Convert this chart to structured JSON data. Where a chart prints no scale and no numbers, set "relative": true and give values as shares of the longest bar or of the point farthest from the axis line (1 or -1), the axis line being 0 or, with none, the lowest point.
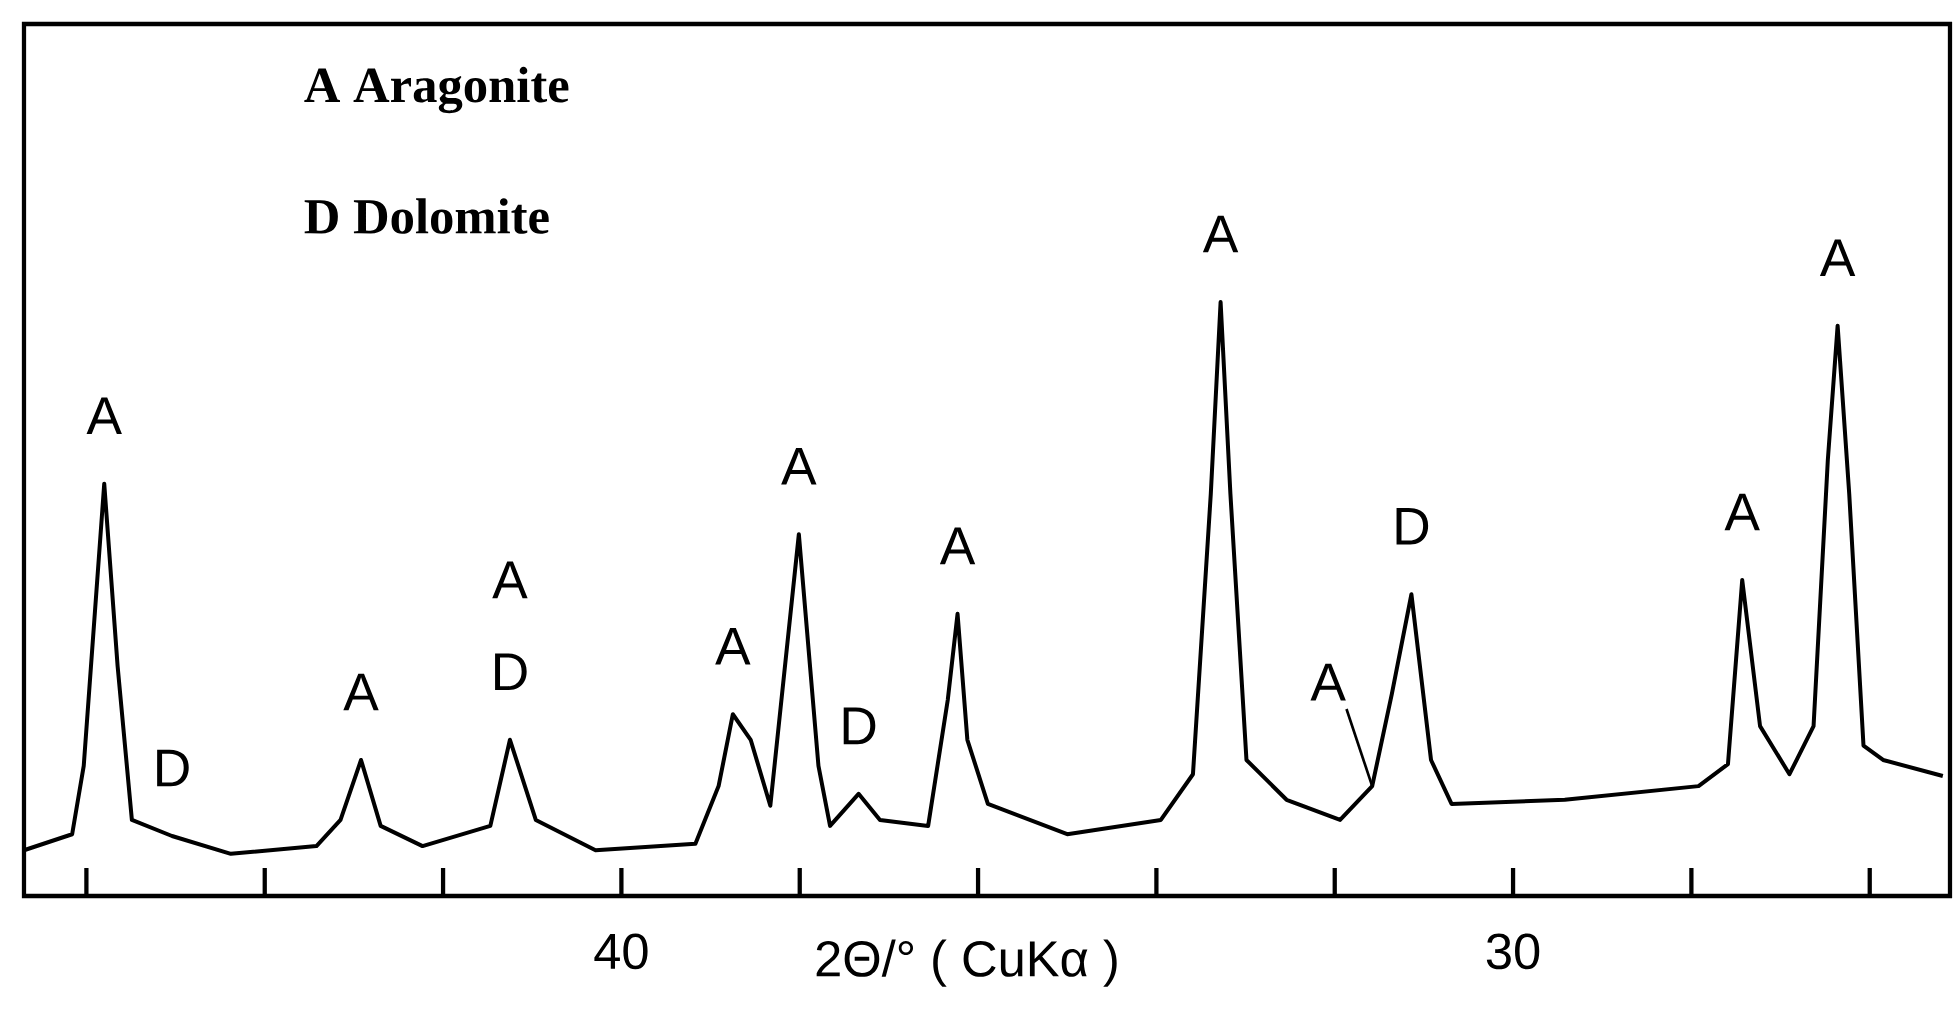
{
  "chart_data": {
    "type": "line",
    "relative": true,
    "xlabel": "2Θ/° ( CuKα )",
    "xlim": [
      46.7,
      25.1
    ],
    "xticks": [
      {
        "value": 46,
        "label": null
      },
      {
        "value": 44,
        "label": null
      },
      {
        "value": 42,
        "label": null
      },
      40,
      {
        "value": 38,
        "label": null
      },
      {
        "value": 36,
        "label": null
      },
      {
        "value": 34,
        "label": null
      },
      {
        "value": 32,
        "label": null
      },
      30,
      {
        "value": 28,
        "label": null
      },
      {
        "value": 26,
        "label": null
      }
    ],
    "tick_labels": "x",
    "x": [
      46.7,
      46.16,
      46.03,
      45.8,
      45.65,
      45.49,
      45.04,
      44.38,
      43.42,
      43.15,
      42.92,
      42.7,
      42.23,
      41.47,
      41.25,
      40.96,
      40.29,
      39.17,
      38.91,
      38.75,
      38.55,
      38.33,
      38.01,
      37.79,
      37.66,
      37.34,
      37.1,
      36.56,
      36.34,
      36.23,
      36.12,
      35.89,
      35.0,
      33.95,
      33.59,
      33.39,
      33.28,
      33.17,
      32.99,
      32.54,
      31.94,
      31.58,
      31.36,
      31.14,
      30.92,
      30.69,
      29.42,
      27.92,
      27.59,
      27.43,
      27.23,
      26.9,
      26.63,
      26.47,
      26.36,
      26.23,
      26.07,
      25.85,
      25.18
    ],
    "series": [
      {
        "color": "#000000",
        "values": [
          0.077,
          0.104,
          0.219,
          0.694,
          0.387,
          0.128,
          0.101,
          0.071,
          0.084,
          0.128,
          0.229,
          0.118,
          0.084,
          0.118,
          0.263,
          0.128,
          0.077,
          0.088,
          0.185,
          0.306,
          0.263,
          0.152,
          0.609,
          0.219,
          0.118,
          0.172,
          0.128,
          0.118,
          0.33,
          0.475,
          0.263,
          0.155,
          0.104,
          0.128,
          0.205,
          0.677,
          1,
          0.677,
          0.229,
          0.162,
          0.128,
          0.185,
          0.34,
          0.508,
          0.229,
          0.155,
          0.162,
          0.185,
          0.222,
          0.532,
          0.286,
          0.205,
          0.286,
          0.734,
          0.96,
          0.677,
          0.253,
          0.229,
          0.202
        ]
      }
    ],
    "annotations": [
      "A Aragonite",
      "D Dolomite",
      {
        "text": "A",
        "x": 45.8,
        "y": 0.694
      },
      {
        "text": "D",
        "x": 45.04,
        "y": 0.101
      },
      {
        "text": "A",
        "x": 42.92,
        "y": 0.229
      },
      {
        "text": "D",
        "x": 41.25,
        "y": 0.263
      },
      {
        "text": "A",
        "x": 41.25,
        "y": 0.263
      },
      {
        "text": "A",
        "x": 38.75,
        "y": 0.306
      },
      {
        "text": "A",
        "x": 38.01,
        "y": 0.609
      },
      {
        "text": "D",
        "x": 37.34,
        "y": 0.172
      },
      {
        "text": "A",
        "x": 36.23,
        "y": 0.475
      },
      {
        "text": "A",
        "x": 33.28,
        "y": 1
      },
      {
        "text": "A",
        "x": 31.58,
        "y": 0.185
      },
      {
        "text": "D",
        "x": 31.14,
        "y": 0.508
      },
      {
        "text": "A",
        "x": 27.43,
        "y": 0.532
      },
      {
        "text": "A",
        "x": 26.36,
        "y": 0.96
      }
    ]
  }
}
